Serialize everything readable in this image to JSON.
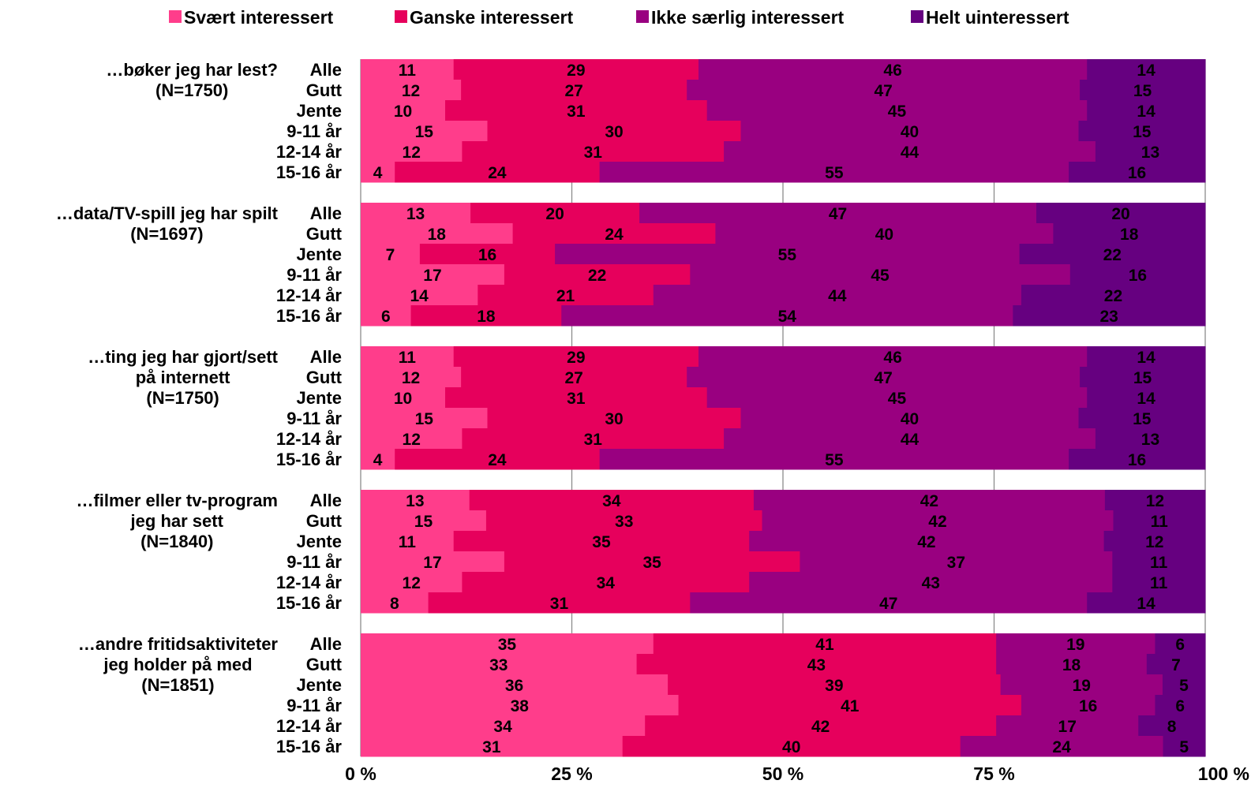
{
  "chart_data": {
    "type": "bar",
    "orientation": "horizontal",
    "stacked": true,
    "xlim": [
      0,
      100
    ],
    "x_ticks": [
      "0 %",
      "25 %",
      "50 %",
      "75 %",
      "100 %"
    ],
    "grid": true,
    "legend_position": "top",
    "series": [
      {
        "name": "Svært interessert",
        "color": "#ff3d8b"
      },
      {
        "name": "Ganske interessert",
        "color": "#e6005c"
      },
      {
        "name": "Ikke særlig interessert",
        "color": "#990080"
      },
      {
        "name": "Helt uinteressert",
        "color": "#660080"
      }
    ],
    "groups": [
      {
        "label_lines": [
          "…bøker jeg har lest?",
          "(N=1750)"
        ],
        "rows": [
          {
            "label": "Alle",
            "values": [
              11,
              29,
              46,
              14
            ]
          },
          {
            "label": "Gutt",
            "values": [
              12,
              27,
              47,
              15
            ]
          },
          {
            "label": "Jente",
            "values": [
              10,
              31,
              45,
              14
            ]
          },
          {
            "label": "9-11 år",
            "values": [
              15,
              30,
              40,
              15
            ]
          },
          {
            "label": "12-14 år",
            "values": [
              12,
              31,
              44,
              13
            ]
          },
          {
            "label": "15-16 år",
            "values": [
              4,
              24,
              55,
              16
            ]
          }
        ]
      },
      {
        "label_lines": [
          "…data/TV-spill jeg har spilt",
          "(N=1697)"
        ],
        "rows": [
          {
            "label": "Alle",
            "values": [
              13,
              20,
              47,
              20
            ]
          },
          {
            "label": "Gutt",
            "values": [
              18,
              24,
              40,
              18
            ]
          },
          {
            "label": "Jente",
            "values": [
              7,
              16,
              55,
              22
            ]
          },
          {
            "label": "9-11 år",
            "values": [
              17,
              22,
              45,
              16
            ]
          },
          {
            "label": "12-14 år",
            "values": [
              14,
              21,
              44,
              22
            ]
          },
          {
            "label": "15-16 år",
            "values": [
              6,
              18,
              54,
              23
            ]
          }
        ]
      },
      {
        "label_lines": [
          "…ting jeg har gjort/sett",
          "på internett",
          "(N=1750)"
        ],
        "rows": [
          {
            "label": "Alle",
            "values": [
              11,
              29,
              46,
              14
            ]
          },
          {
            "label": "Gutt",
            "values": [
              12,
              27,
              47,
              15
            ]
          },
          {
            "label": "Jente",
            "values": [
              10,
              31,
              45,
              14
            ]
          },
          {
            "label": "9-11 år",
            "values": [
              15,
              30,
              40,
              15
            ]
          },
          {
            "label": "12-14 år",
            "values": [
              12,
              31,
              44,
              13
            ]
          },
          {
            "label": "15-16 år",
            "values": [
              4,
              24,
              55,
              16
            ]
          }
        ]
      },
      {
        "label_lines": [
          "…filmer eller tv-program",
          "jeg har sett",
          "(N=1840)"
        ],
        "rows": [
          {
            "label": "Alle",
            "values": [
              13,
              34,
              42,
              12
            ]
          },
          {
            "label": "Gutt",
            "values": [
              15,
              33,
              42,
              11
            ]
          },
          {
            "label": "Jente",
            "values": [
              11,
              35,
              42,
              12
            ]
          },
          {
            "label": "9-11 år",
            "values": [
              17,
              35,
              37,
              11
            ]
          },
          {
            "label": "12-14 år",
            "values": [
              12,
              34,
              43,
              11
            ]
          },
          {
            "label": "15-16 år",
            "values": [
              8,
              31,
              47,
              14
            ]
          }
        ]
      },
      {
        "label_lines": [
          "…andre fritidsaktiviteter",
          "jeg holder på med",
          "(N=1851)"
        ],
        "rows": [
          {
            "label": "Alle",
            "values": [
              35,
              41,
              19,
              6
            ]
          },
          {
            "label": "Gutt",
            "values": [
              33,
              43,
              18,
              7
            ]
          },
          {
            "label": "Jente",
            "values": [
              36,
              39,
              19,
              5
            ]
          },
          {
            "label": "9-11 år",
            "values": [
              38,
              41,
              16,
              6
            ]
          },
          {
            "label": "12-14 år",
            "values": [
              34,
              42,
              17,
              8
            ]
          },
          {
            "label": "15-16 år",
            "values": [
              31,
              40,
              24,
              5
            ]
          }
        ]
      }
    ]
  }
}
